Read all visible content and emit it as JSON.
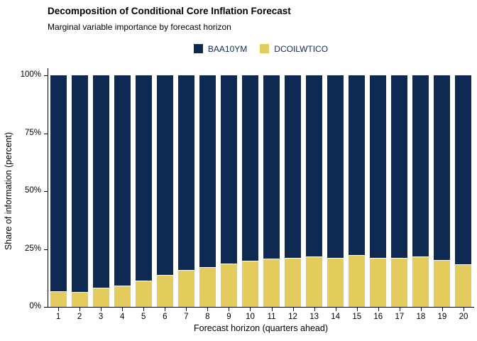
{
  "header": {
    "title": "Decomposition of Conditional Core Inflation Forecast",
    "subtitle": "Marginal variable importance by forecast horizon"
  },
  "chart_data": {
    "type": "bar",
    "stacked": true,
    "orientation": "vertical",
    "title": "Decomposition of Conditional Core Inflation Forecast",
    "subtitle": "Marginal variable importance by forecast horizon",
    "xlabel": "Forecast horizon (quarters ahead)",
    "ylabel": "Share of information (percent)",
    "categories": [
      "1",
      "2",
      "3",
      "4",
      "5",
      "6",
      "7",
      "8",
      "9",
      "10",
      "11",
      "12",
      "13",
      "14",
      "15",
      "16",
      "17",
      "18",
      "19",
      "20"
    ],
    "series": [
      {
        "name": "BAA10YM",
        "color": "#0E2A52",
        "values": [
          93.5,
          94,
          92,
          91,
          89,
          86.5,
          84.5,
          83,
          81.5,
          80.5,
          79.5,
          79,
          78.5,
          79,
          78,
          79,
          79,
          78.5,
          80,
          82
        ]
      },
      {
        "name": "DCOILWTICO",
        "color": "#E3CC5C",
        "values": [
          6.5,
          6,
          8,
          9,
          11,
          13.5,
          15.5,
          17,
          18.5,
          19.5,
          20.5,
          21,
          21.5,
          21,
          22,
          21,
          21,
          21.5,
          20,
          18
        ]
      }
    ],
    "stack_order_bottom_to_top": [
      "DCOILWTICO",
      "BAA10YM"
    ],
    "ylim": [
      0,
      100
    ],
    "y_ticks": [
      {
        "value": 0,
        "label": "0%"
      },
      {
        "value": 25,
        "label": "25%"
      },
      {
        "value": 50,
        "label": "50%"
      },
      {
        "value": 75,
        "label": "75%"
      },
      {
        "value": 100,
        "label": "100%"
      }
    ],
    "grid": false,
    "legend_position": "top"
  },
  "colors": {
    "background": "#FFFFFF",
    "axis": "#000000",
    "text": "#000000",
    "legend_text": "#112A52",
    "baa10ym": "#0E2A52",
    "dcoilwtico": "#E3CC5C"
  }
}
